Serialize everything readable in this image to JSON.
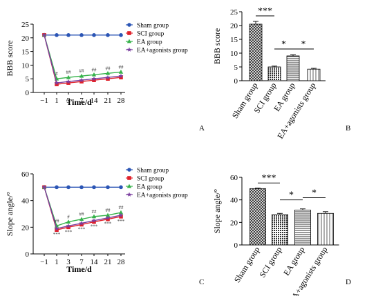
{
  "colors": {
    "sham": "#2b55b5",
    "sci": "#e0202a",
    "ea": "#35b24a",
    "ea_agonists": "#7b3fa0",
    "axis": "#000000",
    "bar_border": "#000000"
  },
  "chart_data": [
    {
      "id": "A",
      "type": "line",
      "panel_label": "A",
      "xlabel": "Time/d",
      "ylabel": "BBB score",
      "categories": [
        "-1",
        "1",
        "3",
        "7",
        "14",
        "21",
        "28"
      ],
      "ylim": [
        0,
        25
      ],
      "yticks": [
        0,
        5,
        10,
        15,
        20,
        25
      ],
      "legend": "top-right",
      "series": [
        {
          "name": "Sham group",
          "key": "sham",
          "marker": "circle",
          "values": [
            21,
            21,
            21,
            21,
            21,
            21,
            21
          ]
        },
        {
          "name": "SCI group",
          "key": "sci",
          "marker": "square",
          "values": [
            21,
            3,
            3.5,
            4,
            4.5,
            5,
            5.5
          ]
        },
        {
          "name": "EA group",
          "key": "ea",
          "marker": "triangle",
          "values": [
            21,
            5,
            5.5,
            6,
            6.5,
            7,
            7.5
          ]
        },
        {
          "name": "EA+agonists group",
          "key": "ea_agonists",
          "marker": "star",
          "values": [
            21,
            3.5,
            4,
            4.5,
            5,
            5.5,
            6
          ]
        }
      ],
      "annotations": [
        {
          "x": "1",
          "text": "#"
        },
        {
          "x": "3",
          "text": "##"
        },
        {
          "x": "7",
          "text": "##"
        },
        {
          "x": "14",
          "text": "##"
        },
        {
          "x": "21",
          "text": "##"
        },
        {
          "x": "28",
          "text": "##"
        }
      ]
    },
    {
      "id": "B",
      "type": "bar",
      "panel_label": "B",
      "ylabel": "BBB score",
      "categories": [
        "Sham group",
        "SCI group",
        "EA group",
        "EA+agonists group"
      ],
      "values": [
        20.5,
        5,
        9,
        4.2
      ],
      "errors": [
        1,
        0.3,
        0.4,
        0.3
      ],
      "patterns": [
        "cross",
        "dots",
        "hlines",
        "vlines"
      ],
      "ylim": [
        0,
        25
      ],
      "yticks": [
        0,
        5,
        10,
        15,
        20,
        25
      ],
      "significance": [
        {
          "from": 0,
          "to": 1,
          "text": "***",
          "y": 23.5
        },
        {
          "from": 1,
          "to": 2,
          "text": "*",
          "y": 11.5
        },
        {
          "from": 2,
          "to": 3,
          "text": "*",
          "y": 11.5
        }
      ]
    },
    {
      "id": "C",
      "type": "line",
      "panel_label": "C",
      "xlabel": "Time/d",
      "ylabel": "Slope angle/°",
      "categories": [
        "-1",
        "1",
        "3",
        "7",
        "14",
        "21",
        "28"
      ],
      "ylim": [
        0,
        60
      ],
      "yticks": [
        0,
        20,
        40,
        60
      ],
      "legend": "top-right",
      "series": [
        {
          "name": "Sham group",
          "key": "sham",
          "marker": "circle",
          "values": [
            50,
            50,
            50,
            50,
            50,
            50,
            50
          ]
        },
        {
          "name": "SCI group",
          "key": "sci",
          "marker": "square",
          "values": [
            50,
            18,
            20,
            22,
            24,
            26,
            28
          ]
        },
        {
          "name": "EA group",
          "key": "ea",
          "marker": "triangle",
          "values": [
            50,
            21,
            24,
            26,
            28,
            29,
            31
          ]
        },
        {
          "name": "EA+agonists group",
          "key": "ea_agonists",
          "marker": "star",
          "values": [
            50,
            19,
            21,
            23,
            25,
            27,
            29
          ]
        }
      ],
      "annotations": [
        {
          "x": "1",
          "text": "***",
          "pos": "below"
        },
        {
          "x": "3",
          "text": "***",
          "pos": "below"
        },
        {
          "x": "7",
          "text": "***",
          "pos": "below"
        },
        {
          "x": "14",
          "text": "***",
          "pos": "below"
        },
        {
          "x": "21",
          "text": "***",
          "pos": "below"
        },
        {
          "x": "28",
          "text": "***",
          "pos": "below"
        },
        {
          "x": "1",
          "text": "##",
          "pos": "above"
        },
        {
          "x": "3",
          "text": "#",
          "pos": "above"
        },
        {
          "x": "7",
          "text": "##",
          "pos": "above"
        },
        {
          "x": "14",
          "text": "##",
          "pos": "above"
        },
        {
          "x": "21",
          "text": "##",
          "pos": "above"
        },
        {
          "x": "28",
          "text": "##",
          "pos": "above"
        }
      ]
    },
    {
      "id": "D",
      "type": "bar",
      "panel_label": "D",
      "ylabel": "Slope angle/°",
      "categories": [
        "Sham group",
        "SCI group",
        "EA group",
        "EA+agonists group"
      ],
      "values": [
        50,
        27,
        31,
        28
      ],
      "errors": [
        0.5,
        1,
        1,
        1.5
      ],
      "patterns": [
        "cross",
        "dots",
        "hlines",
        "vlines"
      ],
      "ylim": [
        0,
        60
      ],
      "yticks": [
        0,
        20,
        40,
        60
      ],
      "significance": [
        {
          "from": 0,
          "to": 1,
          "text": "***",
          "y": 55
        },
        {
          "from": 1,
          "to": 2,
          "text": "*",
          "y": 40
        },
        {
          "from": 2,
          "to": 3,
          "text": "*",
          "y": 42
        }
      ]
    }
  ]
}
